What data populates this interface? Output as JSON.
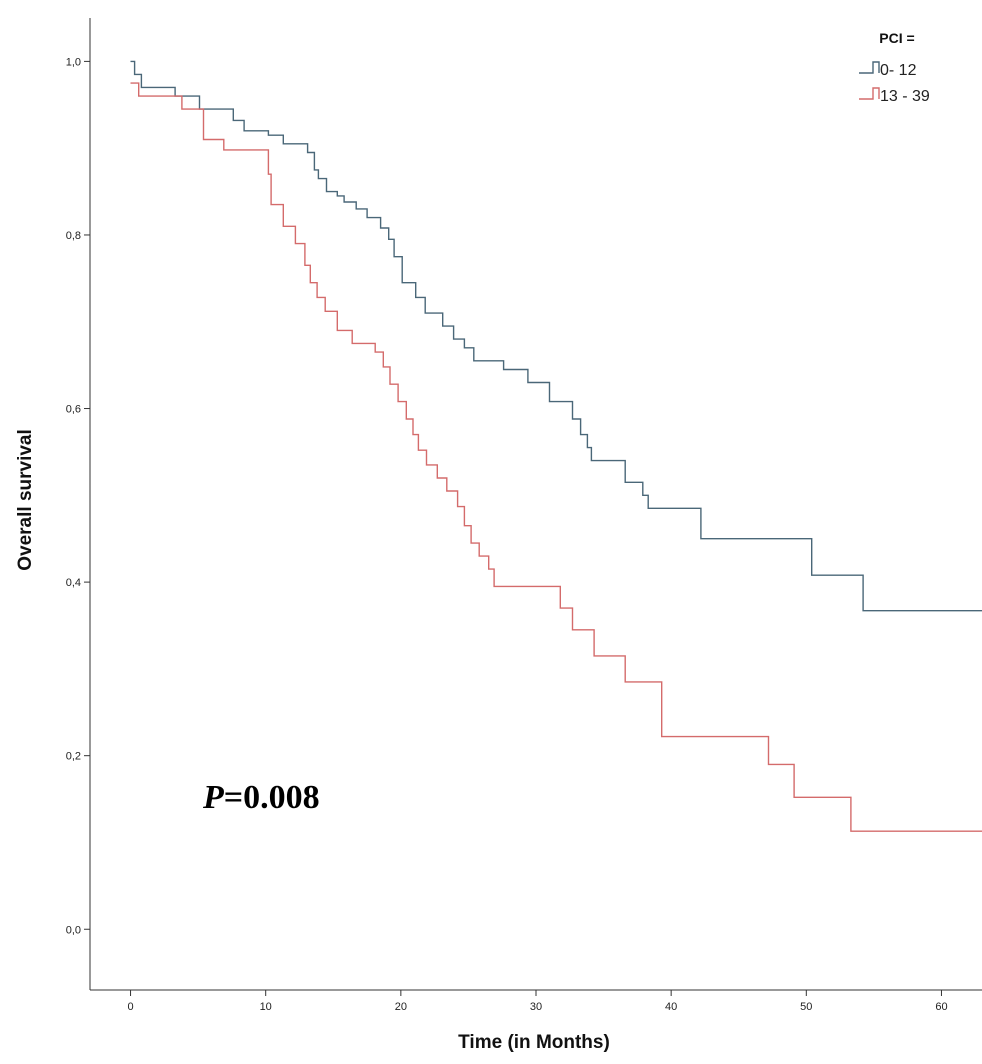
{
  "chart_data": {
    "type": "line",
    "subtype": "kaplan-meier",
    "xlabel": "Time (in Months)",
    "ylabel": "Overall survival",
    "xlim": [
      -3,
      63
    ],
    "ylim": [
      -0.07,
      1.05
    ],
    "xticks": [
      0,
      10,
      20,
      30,
      40,
      50,
      60
    ],
    "xtick_labels": [
      "0",
      "10",
      "20",
      "30",
      "40",
      "50",
      "60"
    ],
    "yticks": [
      0.0,
      0.2,
      0.4,
      0.6,
      0.8,
      1.0
    ],
    "ytick_labels": [
      "0,0",
      "0,2",
      "0,4",
      "0,6",
      "0,8",
      "1,0"
    ],
    "grid": false,
    "legend": {
      "title": "PCI =",
      "placement": "top-right"
    },
    "annotation": {
      "p_label": "P",
      "p_value": "=0.008"
    },
    "series": [
      {
        "name": "0- 12",
        "color": "#4a6778",
        "points": [
          [
            0,
            1.0
          ],
          [
            0.3,
            0.985
          ],
          [
            0.8,
            0.97
          ],
          [
            3.3,
            0.96
          ],
          [
            4.2,
            0.96
          ],
          [
            5.1,
            0.945
          ],
          [
            7.6,
            0.932
          ],
          [
            8.4,
            0.92
          ],
          [
            10.2,
            0.915
          ],
          [
            11.3,
            0.905
          ],
          [
            12.2,
            0.905
          ],
          [
            13.1,
            0.895
          ],
          [
            13.6,
            0.875
          ],
          [
            13.9,
            0.865
          ],
          [
            14.5,
            0.85
          ],
          [
            15.3,
            0.845
          ],
          [
            15.8,
            0.838
          ],
          [
            16.7,
            0.83
          ],
          [
            17.5,
            0.82
          ],
          [
            18.5,
            0.808
          ],
          [
            19.1,
            0.795
          ],
          [
            19.5,
            0.775
          ],
          [
            20.1,
            0.745
          ],
          [
            21.1,
            0.728
          ],
          [
            21.8,
            0.71
          ],
          [
            22.2,
            0.71
          ],
          [
            23.1,
            0.695
          ],
          [
            23.9,
            0.68
          ],
          [
            24.7,
            0.67
          ],
          [
            25.4,
            0.655
          ],
          [
            27.6,
            0.645
          ],
          [
            29.4,
            0.63
          ],
          [
            31.0,
            0.608
          ],
          [
            32.7,
            0.588
          ],
          [
            33.3,
            0.57
          ],
          [
            33.8,
            0.555
          ],
          [
            34.1,
            0.54
          ],
          [
            36.6,
            0.515
          ],
          [
            37.9,
            0.5
          ],
          [
            38.3,
            0.485
          ],
          [
            42.2,
            0.45
          ],
          [
            50.4,
            0.408
          ],
          [
            54.2,
            0.367
          ]
        ],
        "end_x": 63
      },
      {
        "name": "13 - 39",
        "color": "#d46b6b",
        "points": [
          [
            0,
            0.975
          ],
          [
            0.6,
            0.96
          ],
          [
            3.8,
            0.945
          ],
          [
            5.4,
            0.91
          ],
          [
            6.9,
            0.898
          ],
          [
            10.2,
            0.87
          ],
          [
            10.4,
            0.835
          ],
          [
            11.3,
            0.81
          ],
          [
            12.2,
            0.79
          ],
          [
            12.9,
            0.765
          ],
          [
            13.3,
            0.745
          ],
          [
            13.8,
            0.728
          ],
          [
            14.4,
            0.712
          ],
          [
            15.3,
            0.69
          ],
          [
            16.4,
            0.675
          ],
          [
            18.1,
            0.665
          ],
          [
            18.7,
            0.648
          ],
          [
            19.2,
            0.628
          ],
          [
            19.8,
            0.608
          ],
          [
            20.4,
            0.588
          ],
          [
            20.9,
            0.57
          ],
          [
            21.3,
            0.552
          ],
          [
            21.9,
            0.535
          ],
          [
            22.7,
            0.52
          ],
          [
            23.4,
            0.505
          ],
          [
            24.2,
            0.487
          ],
          [
            24.7,
            0.465
          ],
          [
            25.2,
            0.445
          ],
          [
            25.8,
            0.43
          ],
          [
            26.5,
            0.415
          ],
          [
            26.9,
            0.395
          ],
          [
            31.8,
            0.37
          ],
          [
            32.7,
            0.345
          ],
          [
            34.3,
            0.315
          ],
          [
            36.6,
            0.285
          ],
          [
            39.3,
            0.222
          ],
          [
            47.2,
            0.19
          ],
          [
            49.1,
            0.152
          ],
          [
            53.3,
            0.113
          ]
        ],
        "end_x": 63
      }
    ]
  }
}
